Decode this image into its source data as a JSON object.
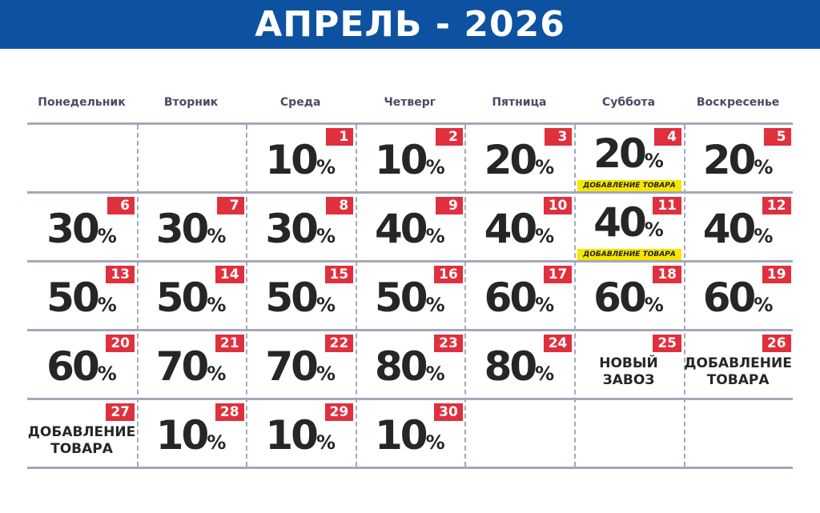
{
  "title": "АПРЕЛЬ - 2026",
  "weekdays": [
    "Понедельник",
    "Вторник",
    "Среда",
    "Четверг",
    "Пятница",
    "Суббота",
    "Воскресенье"
  ],
  "colors": {
    "header": "#0d52a0",
    "day_badge": "#e0303d",
    "tag": "#f6e600",
    "text": "#262626"
  },
  "percent_sign": "%",
  "cells": [
    null,
    null,
    {
      "day": "1",
      "value": "10"
    },
    {
      "day": "2",
      "value": "10"
    },
    {
      "day": "3",
      "value": "20"
    },
    {
      "day": "4",
      "value": "20",
      "tag": "ДОБАВЛЕНИЕ ТОВАРА"
    },
    {
      "day": "5",
      "value": "20"
    },
    {
      "day": "6",
      "value": "30"
    },
    {
      "day": "7",
      "value": "30"
    },
    {
      "day": "8",
      "value": "30"
    },
    {
      "day": "9",
      "value": "40"
    },
    {
      "day": "10",
      "value": "40"
    },
    {
      "day": "11",
      "value": "40",
      "tag": "ДОБАВЛЕНИЕ ТОВАРА"
    },
    {
      "day": "12",
      "value": "40"
    },
    {
      "day": "13",
      "value": "50"
    },
    {
      "day": "14",
      "value": "50"
    },
    {
      "day": "15",
      "value": "50"
    },
    {
      "day": "16",
      "value": "50"
    },
    {
      "day": "17",
      "value": "60"
    },
    {
      "day": "18",
      "value": "60"
    },
    {
      "day": "19",
      "value": "60"
    },
    {
      "day": "20",
      "value": "60"
    },
    {
      "day": "21",
      "value": "70"
    },
    {
      "day": "22",
      "value": "70"
    },
    {
      "day": "23",
      "value": "80"
    },
    {
      "day": "24",
      "value": "80"
    },
    {
      "day": "25",
      "text": [
        "НОВЫЙ",
        "ЗАВОЗ"
      ]
    },
    {
      "day": "26",
      "text": [
        "ДОБАВЛЕНИЕ",
        "ТОВАРА"
      ]
    },
    {
      "day": "27",
      "text": [
        "ДОБАВЛЕНИЕ",
        "ТОВАРА"
      ]
    },
    {
      "day": "28",
      "value": "10"
    },
    {
      "day": "29",
      "value": "10"
    },
    {
      "day": "30",
      "value": "10"
    },
    null,
    null,
    null
  ]
}
